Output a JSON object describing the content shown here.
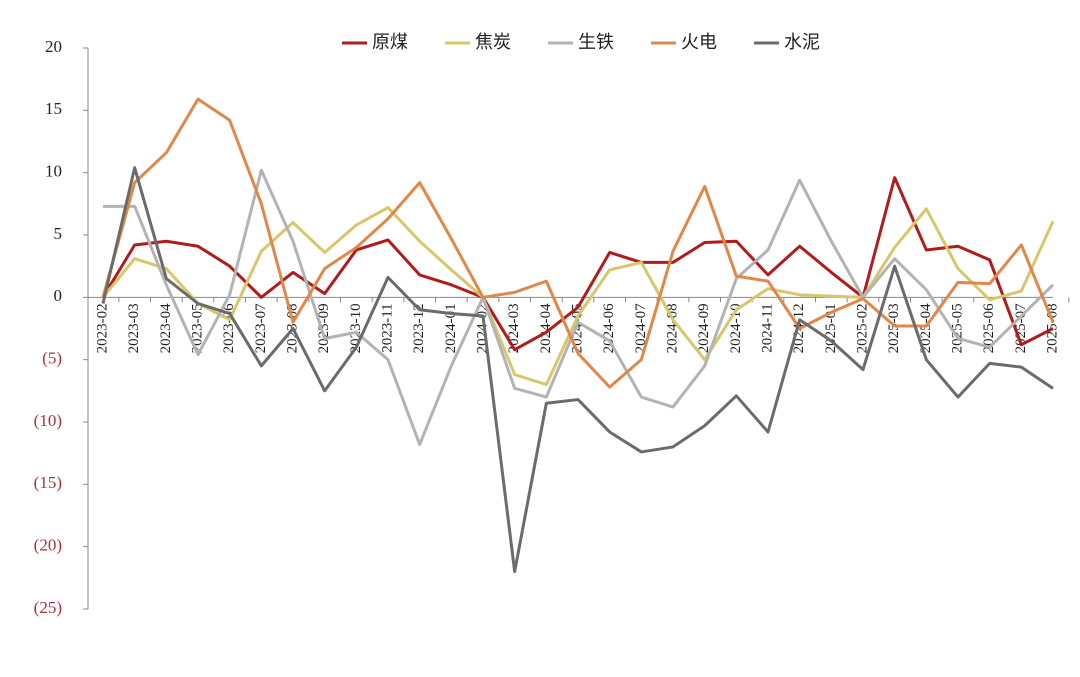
{
  "chart_data": {
    "type": "line",
    "categories": [
      "2023-02",
      "2023-03",
      "2023-04",
      "2023-05",
      "2023-06",
      "2023-07",
      "2023-08",
      "2023-09",
      "2023-10",
      "2023-11",
      "2023-12",
      "2024-01",
      "2024-02",
      "2024-03",
      "2024-04",
      "2024-05",
      "2024-06",
      "2024-07",
      "2024-08",
      "2024-09",
      "2024-10",
      "2024-11",
      "2024-12",
      "2025-01",
      "2025-02",
      "2025-03",
      "2025-04",
      "2025-05",
      "2025-06",
      "2025-07",
      "2025-08"
    ],
    "series": [
      {
        "name": "原煤",
        "color": "#b01c1c",
        "values": [
          0,
          4.2,
          4.5,
          4.1,
          2.5,
          0,
          2,
          0.3,
          3.8,
          4.6,
          1.8,
          1,
          0,
          -4.2,
          -2.8,
          -0.8,
          3.6,
          2.8,
          2.8,
          4.4,
          4.5,
          1.8,
          4.1,
          2,
          0,
          9.6,
          3.8,
          4.1,
          3,
          -3.8,
          -2.5
        ]
      },
      {
        "name": "焦炭",
        "color": "#d6c86a",
        "values": [
          0,
          3.1,
          2.3,
          -0.5,
          -1.8,
          3.7,
          6,
          3.6,
          5.8,
          7.2,
          4.5,
          2.2,
          0,
          -6.2,
          -7,
          -1.5,
          2.2,
          2.8,
          -1.8,
          -5,
          -1,
          0.7,
          0.2,
          0.1,
          0,
          4,
          7.1,
          2.3,
          -0.2,
          0.5,
          6.1
        ]
      },
      {
        "name": "生铁",
        "color": "#b3b3b3",
        "values": [
          7.3,
          7.3,
          1,
          -4.6,
          0.2,
          10.2,
          4.5,
          -3.3,
          -2.8,
          -5,
          -11.8,
          -5.5,
          0,
          -7.3,
          -8,
          -2,
          -3.5,
          -8,
          -8.8,
          -5.5,
          1.5,
          3.8,
          9.4,
          4.5,
          0,
          3.1,
          0.6,
          -3.3,
          -4,
          -1.5,
          1
        ]
      },
      {
        "name": "火电",
        "color": "#e0874a",
        "values": [
          0,
          9.2,
          11.6,
          15.9,
          14.2,
          7.5,
          -2,
          2.3,
          4,
          6.3,
          9.2,
          4.7,
          0,
          0.4,
          1.3,
          -4.5,
          -7.2,
          -5,
          3.7,
          8.9,
          1.7,
          1.3,
          -2.5,
          -1.2,
          -0.1,
          -2.3,
          -2.3,
          1.2,
          1.1,
          4.2,
          -2
        ]
      },
      {
        "name": "水泥",
        "color": "#6b6b6b",
        "values": [
          -0.5,
          10.4,
          1.5,
          -0.5,
          -1.3,
          -5.5,
          -2.5,
          -7.5,
          -4,
          1.6,
          -1,
          -1.3,
          -1.5,
          -22,
          -8.5,
          -8.2,
          -10.8,
          -12.4,
          -12,
          -10.3,
          -7.9,
          -10.8,
          -1.8,
          -3.5,
          -5.8,
          2.5,
          -5,
          -8,
          -5.3,
          -5.6,
          -7.3
        ]
      }
    ],
    "ylim": [
      -25,
      20
    ],
    "yticks": [
      {
        "value": -25,
        "label": "(25)"
      },
      {
        "value": -20,
        "label": "(20)"
      },
      {
        "value": -15,
        "label": "(15)"
      },
      {
        "value": -10,
        "label": "(10)"
      },
      {
        "value": -5,
        "label": "(5)"
      },
      0,
      5,
      10,
      15,
      20
    ],
    "legend": "top"
  }
}
